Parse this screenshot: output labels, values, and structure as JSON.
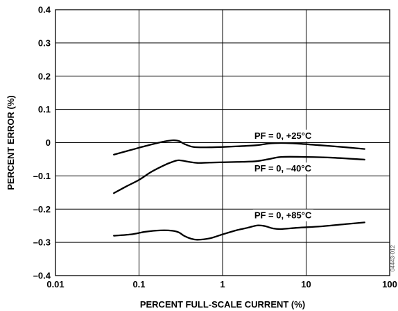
{
  "chart_data": {
    "type": "line",
    "title": "",
    "xlabel": "PERCENT FULL-SCALE CURRENT (%)",
    "ylabel": "PERCENT ERROR (%)",
    "xscale": "log",
    "xlim": [
      0.01,
      100
    ],
    "ylim": [
      -0.4,
      0.4
    ],
    "xticks": [
      "0.01",
      "0.1",
      "1",
      "10",
      "100"
    ],
    "yticks": [
      "0.4",
      "0.3",
      "0.2",
      "0.1",
      "0",
      "–0.1",
      "–0.2",
      "–0.3",
      "–0.4"
    ],
    "grid": true,
    "line_color": "#000000",
    "series": [
      {
        "name": "PF = 0, +25°C",
        "x": [
          0.05,
          0.08,
          0.12,
          0.18,
          0.25,
          0.3,
          0.35,
          0.45,
          0.7,
          1,
          1.5,
          2.5,
          3.5,
          5,
          8,
          15,
          30,
          50
        ],
        "y": [
          -0.036,
          -0.022,
          -0.01,
          0.001,
          0.007,
          0.005,
          -0.004,
          -0.013,
          -0.014,
          -0.013,
          -0.011,
          -0.008,
          -0.003,
          -0.001,
          -0.003,
          -0.008,
          -0.014,
          -0.019
        ]
      },
      {
        "name": "PF = 0, –40°C",
        "x": [
          0.05,
          0.07,
          0.1,
          0.14,
          0.2,
          0.25,
          0.3,
          0.4,
          0.5,
          0.7,
          1,
          1.5,
          2.5,
          3.5,
          5,
          10,
          20,
          50
        ],
        "y": [
          -0.152,
          -0.132,
          -0.112,
          -0.088,
          -0.068,
          -0.058,
          -0.053,
          -0.058,
          -0.061,
          -0.06,
          -0.059,
          -0.058,
          -0.056,
          -0.05,
          -0.043,
          -0.043,
          -0.045,
          -0.051
        ]
      },
      {
        "name": "PF = 0, +85°C",
        "x": [
          0.05,
          0.08,
          0.12,
          0.18,
          0.25,
          0.3,
          0.35,
          0.42,
          0.5,
          0.7,
          1,
          1.5,
          2,
          2.6,
          3.2,
          4,
          5,
          8,
          15,
          30,
          50
        ],
        "y": [
          -0.28,
          -0.276,
          -0.268,
          -0.264,
          -0.265,
          -0.27,
          -0.281,
          -0.289,
          -0.292,
          -0.288,
          -0.276,
          -0.263,
          -0.256,
          -0.249,
          -0.251,
          -0.258,
          -0.26,
          -0.256,
          -0.252,
          -0.245,
          -0.24
        ]
      }
    ],
    "annotations": [
      {
        "text": "PF = 0, +25°C",
        "x": 2.4,
        "y": 0.012
      },
      {
        "text": "PF = 0, –40°C",
        "x": 2.4,
        "y": -0.087
      },
      {
        "text": "PF = 0, +85°C",
        "x": 2.4,
        "y": -0.228
      }
    ],
    "figure_code": "04443-012"
  }
}
